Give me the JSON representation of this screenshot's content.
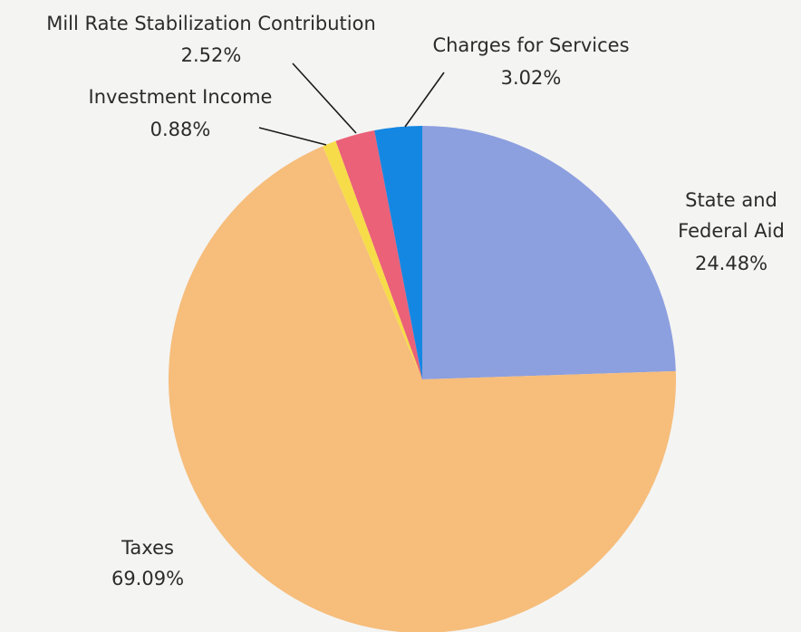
{
  "chart_data": {
    "type": "pie",
    "start_angle_deg": 0,
    "direction": "clockwise",
    "slices": [
      {
        "name": "State and Federal Aid",
        "value": 24.48,
        "label": "24.48%",
        "color": "#8c9fdf"
      },
      {
        "name": "Taxes",
        "value": 69.09,
        "label": "69.09%",
        "color": "#f6bd7b"
      },
      {
        "name": "Investment Income",
        "value": 0.88,
        "label": "0.88%",
        "color": "#f7dc4a"
      },
      {
        "name": "Mill Rate Stabilization Contribution",
        "value": 2.52,
        "label": "2.52%",
        "color": "#ea6178"
      },
      {
        "name": "Charges for Services",
        "value": 3.02,
        "label": "3.02%",
        "color": "#1487e2"
      }
    ]
  }
}
